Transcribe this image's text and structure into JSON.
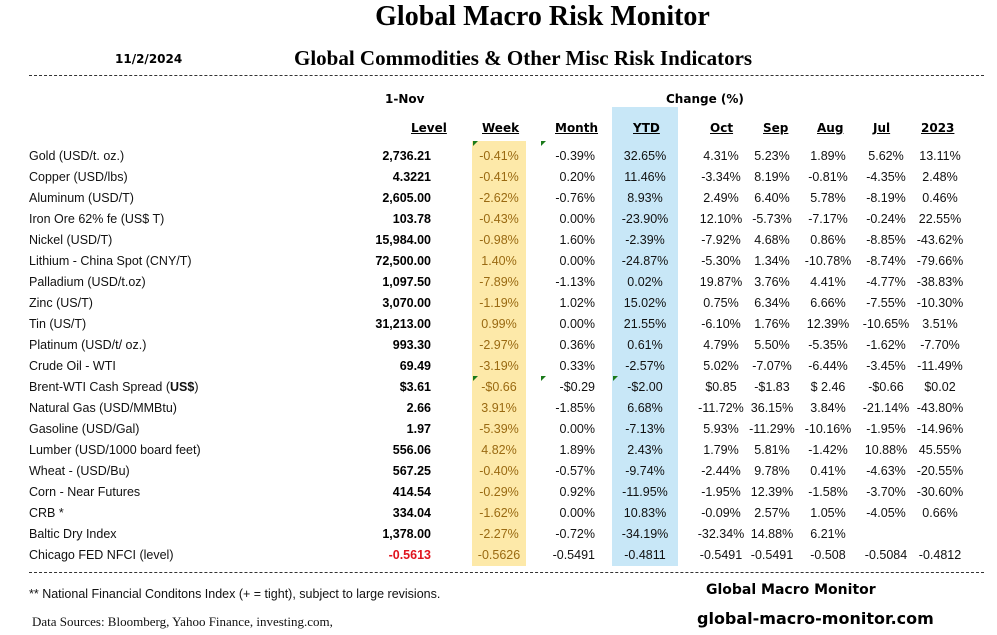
{
  "header": {
    "title": "Global Macro Risk Monitor",
    "date": "11/2/2024",
    "subtitle": "Global Commodities & Other Misc Risk Indicators",
    "as_of_label": "1-Nov",
    "change_label": "Change (%)"
  },
  "columns": {
    "level": "Level",
    "week": "Week",
    "month": "Month",
    "ytd": "YTD",
    "oct": "Oct",
    "sep": "Sep",
    "aug": "Aug",
    "jul": "Jul",
    "y2023": "2023"
  },
  "rows": [
    {
      "name": "Gold (USD/t. oz.)",
      "level": "2,736.21",
      "week": "-0.41%",
      "month": "-0.39%",
      "ytd": "32.65%",
      "oct": "4.31%",
      "sep": "5.23%",
      "aug": "1.89%",
      "jul": "5.62%",
      "y2023": "13.11%"
    },
    {
      "name": "Copper (USD/lbs)",
      "level": "4.3221",
      "week": "-0.41%",
      "month": "0.20%",
      "ytd": "11.46%",
      "oct": "-3.34%",
      "sep": "8.19%",
      "aug": "-0.81%",
      "jul": "-4.35%",
      "y2023": "2.48%"
    },
    {
      "name": "Aluminum (USD/T)",
      "level": "2,605.00",
      "week": "-2.62%",
      "month": "-0.76%",
      "ytd": "8.93%",
      "oct": "2.49%",
      "sep": "6.40%",
      "aug": "5.78%",
      "jul": "-8.19%",
      "y2023": "0.46%"
    },
    {
      "name": "Iron Ore 62% fe (US$ T)",
      "level": "103.78",
      "week": "-0.43%",
      "month": "0.00%",
      "ytd": "-23.90%",
      "oct": "12.10%",
      "sep": "-5.73%",
      "aug": "-7.17%",
      "jul": "-0.24%",
      "y2023": "22.55%"
    },
    {
      "name": "Nickel (USD/T)",
      "level": "15,984.00",
      "week": "-0.98%",
      "month": "1.60%",
      "ytd": "-2.39%",
      "oct": "-7.92%",
      "sep": "4.68%",
      "aug": "0.86%",
      "jul": "-8.85%",
      "y2023": "-43.62%"
    },
    {
      "name": "Lithium - China Spot (CNY/T)",
      "level": "72,500.00",
      "week": "1.40%",
      "month": "0.00%",
      "ytd": "-24.87%",
      "oct": "-5.30%",
      "sep": "1.34%",
      "aug": "-10.78%",
      "jul": "-8.74%",
      "y2023": "-79.66%"
    },
    {
      "name": "Palladium (USD/t.oz)",
      "level": "1,097.50",
      "week": "-7.89%",
      "month": "-1.13%",
      "ytd": "0.02%",
      "oct": "19.87%",
      "sep": "3.76%",
      "aug": "4.41%",
      "jul": "-4.77%",
      "y2023": "-38.83%"
    },
    {
      "name": "Zinc (US/T)",
      "level": "3,070.00",
      "week": "-1.19%",
      "month": "1.02%",
      "ytd": "15.02%",
      "oct": "0.75%",
      "sep": "6.34%",
      "aug": "6.66%",
      "jul": "-7.55%",
      "y2023": "-10.30%"
    },
    {
      "name": "Tin (US/T)",
      "level": "31,213.00",
      "week": "0.99%",
      "month": "0.00%",
      "ytd": "21.55%",
      "oct": "-6.10%",
      "sep": "1.76%",
      "aug": "12.39%",
      "jul": "-10.65%",
      "y2023": "3.51%"
    },
    {
      "name": "Platinum (USD/t/ oz.)",
      "level": "993.30",
      "week": "-2.97%",
      "month": "0.36%",
      "ytd": "0.61%",
      "oct": "4.79%",
      "sep": "5.50%",
      "aug": "-5.35%",
      "jul": "-1.62%",
      "y2023": "-7.70%"
    },
    {
      "name": "Crude Oil - WTI",
      "level": "69.49",
      "week": "-3.19%",
      "month": "0.33%",
      "ytd": "-2.57%",
      "oct": "5.02%",
      "sep": "-7.07%",
      "aug": "-6.44%",
      "jul": "-3.45%",
      "y2023": "-11.49%"
    },
    {
      "name": "Brent-WTI Cash Spread (",
      "name_bold": "US$",
      "name_tail": ")",
      "level": "$3.61",
      "week": "-$0.66",
      "month": "-$0.29",
      "ytd": "-$2.00",
      "oct": "$0.85",
      "sep": "-$1.83",
      "aug": "$  2.46",
      "jul": "-$0.66",
      "y2023": "$0.02"
    },
    {
      "name": "Natural Gas  (USD/MMBtu)",
      "level": "2.66",
      "week": "3.91%",
      "month": "-1.85%",
      "ytd": "6.68%",
      "oct": "-11.72%",
      "sep": "36.15%",
      "aug": "3.84%",
      "jul": "-21.14%",
      "y2023": "-43.80%"
    },
    {
      "name": "Gasoline (USD/Gal)",
      "level": "1.97",
      "week": "-5.39%",
      "month": "0.00%",
      "ytd": "-7.13%",
      "oct": "5.93%",
      "sep": "-11.29%",
      "aug": "-10.16%",
      "jul": "-1.95%",
      "y2023": "-14.96%"
    },
    {
      "name": "Lumber (USD/1000 board feet)",
      "level": "556.06",
      "week": "4.82%",
      "month": "1.89%",
      "ytd": "2.43%",
      "oct": "1.79%",
      "sep": "5.81%",
      "aug": "-1.42%",
      "jul": "10.88%",
      "y2023": "45.55%"
    },
    {
      "name": "Wheat - (USD/Bu)",
      "level": "567.25",
      "week": "-0.40%",
      "month": "-0.57%",
      "ytd": "-9.74%",
      "oct": "-2.44%",
      "sep": "9.78%",
      "aug": "0.41%",
      "jul": "-4.63%",
      "y2023": "-20.55%"
    },
    {
      "name": "Corn - Near Futures",
      "level": "414.54",
      "week": "-0.29%",
      "month": "0.92%",
      "ytd": "-11.95%",
      "oct": "-1.95%",
      "sep": "12.39%",
      "aug": "-1.58%",
      "jul": "-3.70%",
      "y2023": "-30.60%"
    },
    {
      "name": "CRB *",
      "level": "334.04",
      "week": "-1.62%",
      "month": "0.00%",
      "ytd": "10.83%",
      "oct": "-0.09%",
      "sep": "2.57%",
      "aug": "1.05%",
      "jul": "-4.05%",
      "y2023": "0.66%"
    },
    {
      "name": "Baltic Dry Index",
      "level": "1,378.00",
      "week": "-2.27%",
      "month": "-0.72%",
      "ytd": "-34.19%",
      "oct": "-32.34%",
      "sep": "14.88%",
      "aug": "6.21%",
      "jul": "",
      "y2023": ""
    },
    {
      "name": "Chicago FED NFCI (level)",
      "level": "-0.5613",
      "level_negative": true,
      "week": "-0.5626",
      "month": "-0.5491",
      "ytd": "-0.4811",
      "oct": "-0.5491",
      "sep": "-0.5491",
      "aug": "-0.508",
      "jul": "-0.5084",
      "y2023": "-0.4812"
    }
  ],
  "footer": {
    "footnote": "** National Financial Conditons Index (+ =  tight), subject to large revisions.",
    "sources": "Data Sources:  Bloomberg,  Yahoo Finance, investing.com,",
    "brand": "Global Macro Monitor",
    "brand_url": "global-macro-monitor.com"
  },
  "colors": {
    "week_highlight": "#fde9a9",
    "ytd_highlight": "#c8e7f7",
    "negative_level": "#e0141e",
    "week_text": "#9a6a12",
    "comment_marker": "#1a7a1a"
  }
}
